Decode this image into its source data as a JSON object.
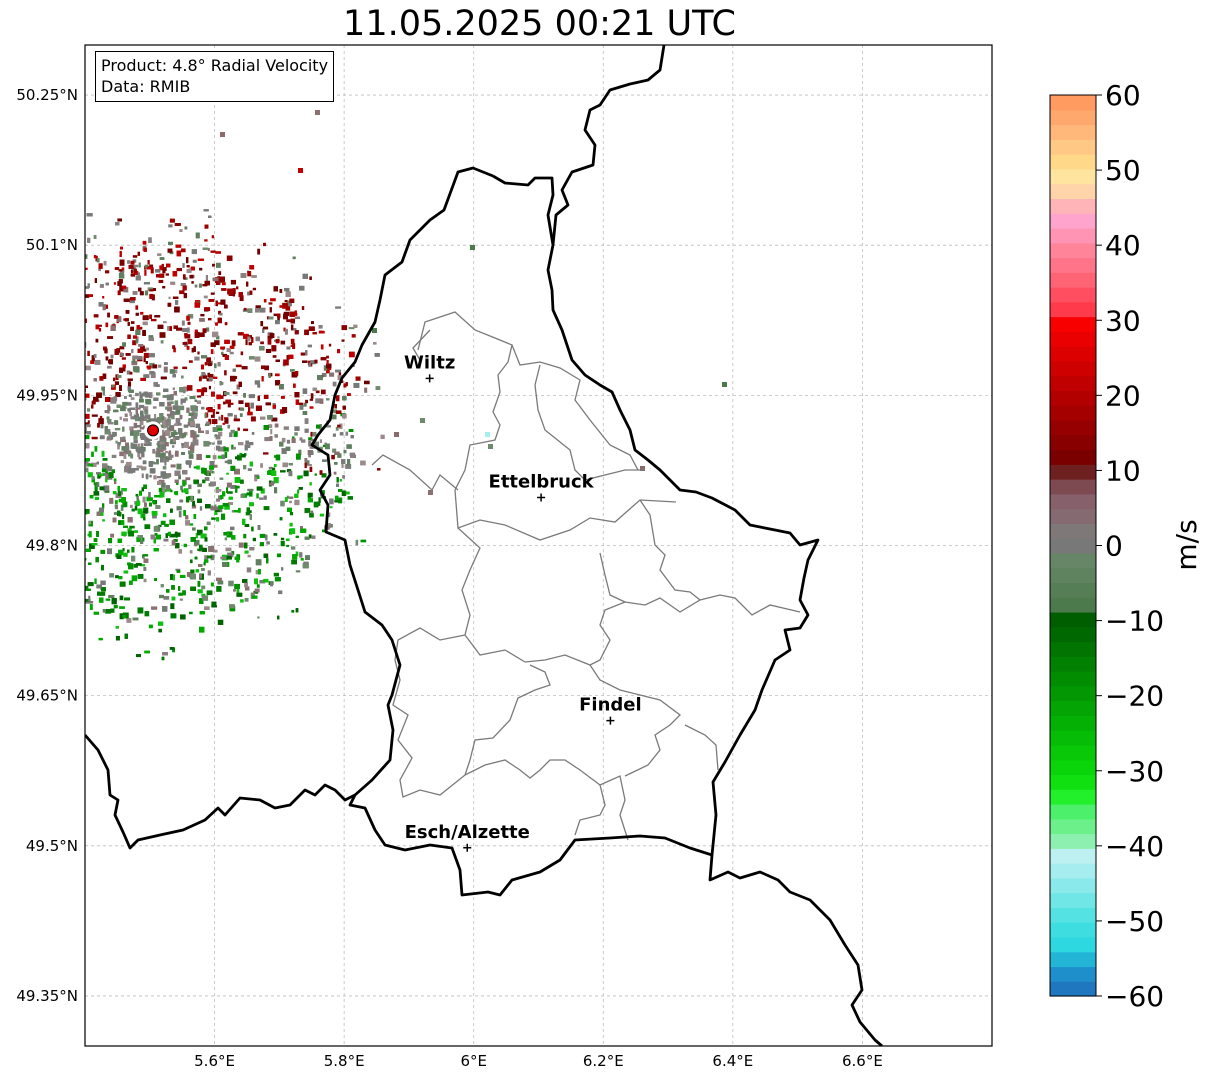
{
  "title": "11.05.2025 00:21 UTC",
  "info_box": {
    "product": "Product: 4.8° Radial Velocity",
    "data": "Data: RMIB"
  },
  "map": {
    "lon_range": [
      5.4,
      6.8
    ],
    "lat_range": [
      49.3,
      50.3
    ],
    "lon_ticks": [
      "5.6°E",
      "5.8°E",
      "6°E",
      "6.2°E",
      "6.4°E",
      "6.6°E"
    ],
    "lat_ticks": [
      "50.25°N",
      "50.1°N",
      "49.95°N",
      "49.8°N",
      "49.65°N",
      "49.5°N",
      "49.35°N"
    ],
    "grid": true,
    "radar_site": {
      "lon": 5.505,
      "lat": 49.915,
      "color": "#e00000"
    },
    "cities": [
      {
        "name": "Wiltz",
        "lon": 5.932,
        "lat": 49.967
      },
      {
        "name": "Ettelbruck",
        "lon": 6.104,
        "lat": 49.848
      },
      {
        "name": "Findel",
        "lon": 6.211,
        "lat": 49.625
      },
      {
        "name": "Esch/Alzette",
        "lon": 5.99,
        "lat": 49.498
      }
    ]
  },
  "colorbar": {
    "label": "m/s",
    "min": -60,
    "max": 60,
    "ticks": [
      "60",
      "50",
      "40",
      "30",
      "20",
      "10",
      "0",
      "−10",
      "−20",
      "−30",
      "−40",
      "−50",
      "−60"
    ],
    "colors_bottom_to_top": [
      "#1f77c0",
      "#1f8fcc",
      "#22b5d6",
      "#2dd8e0",
      "#3ddde0",
      "#55e2e2",
      "#70e6e6",
      "#8ae9ea",
      "#a5edee",
      "#bdf0f0",
      "#8ef0b0",
      "#6cf08a",
      "#4cf06a",
      "#22f02a",
      "#10e010",
      "#0ad40a",
      "#08c808",
      "#06bc06",
      "#05b005",
      "#04a404",
      "#039803",
      "#028c02",
      "#028002",
      "#017401",
      "#006800",
      "#005e00",
      "#4c7a4c",
      "#567e56",
      "#5f825f",
      "#678567",
      "#787878",
      "#7e7878",
      "#856a72",
      "#86606a",
      "#7e4a52",
      "#6e2020",
      "#7a0000",
      "#880000",
      "#960000",
      "#a40000",
      "#b20000",
      "#c00000",
      "#ce0000",
      "#dc0000",
      "#ea0000",
      "#f80000",
      "#ff3a4a",
      "#ff4e60",
      "#ff6474",
      "#ff7488",
      "#ff849a",
      "#ff94b4",
      "#ffa4cc",
      "#ffb4b8",
      "#ffd4a8",
      "#ffe4a0",
      "#ffd88a",
      "#ffc884",
      "#ffb87a",
      "#ffa86e",
      "#ff9a60"
    ]
  }
}
